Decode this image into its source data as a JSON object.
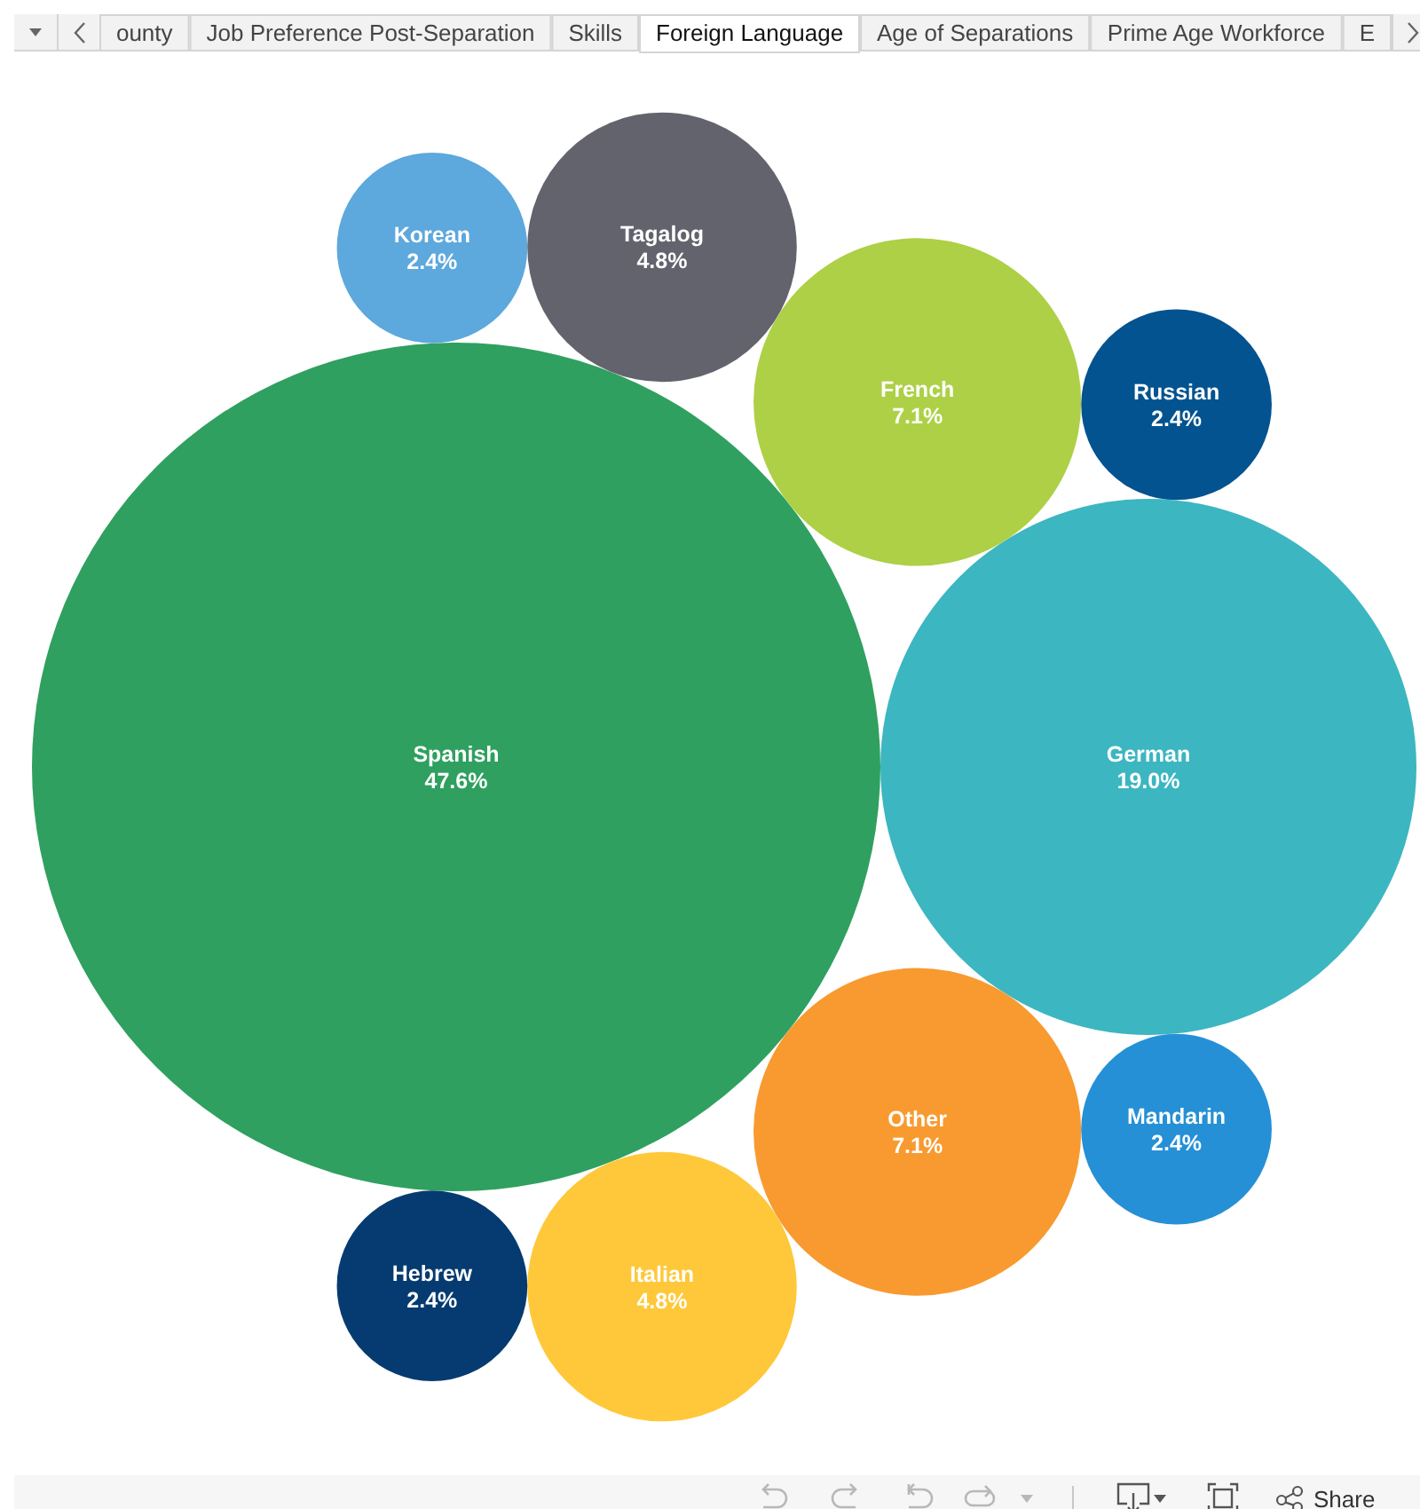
{
  "chart_data": {
    "type": "other",
    "title": "Foreign Language",
    "categories": [
      "Spanish",
      "German",
      "Other",
      "French",
      "Tagalog",
      "Italian",
      "Russian",
      "Mandarin",
      "Hebrew",
      "Korean"
    ],
    "values": [
      47.6,
      19.0,
      7.1,
      7.1,
      4.8,
      4.8,
      2.4,
      2.4,
      2.4,
      2.4
    ],
    "value_labels": [
      "47.6%",
      "19.0%",
      "7.1%",
      "7.1%",
      "4.8%",
      "4.8%",
      "2.4%",
      "2.4%",
      "2.4%",
      "2.4%"
    ],
    "colors": [
      "#2fa05f",
      "#3cb6c1",
      "#f89a2f",
      "#add046",
      "#63636e",
      "#fec83a",
      "#035390",
      "#2590d6",
      "#053b70",
      "#5da8dc"
    ],
    "annotations": [
      "ounty",
      "Job Preference Post-Separation",
      "Skills",
      "Age of Separations",
      "Prime Age Workforce",
      "E",
      "Share"
    ]
  }
}
